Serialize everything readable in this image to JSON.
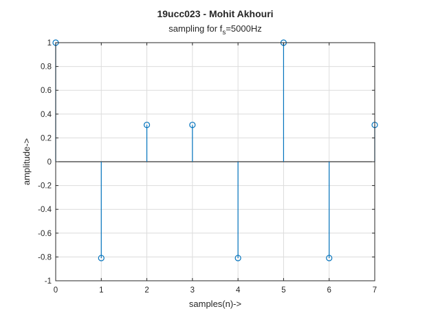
{
  "chart_data": {
    "type": "stem",
    "title": "19ucc023 - Mohit Akhouri",
    "subtitle": {
      "prefix": "sampling for f",
      "subscript": "s",
      "suffix": "=5000Hz"
    },
    "xlabel": "samples(n)->",
    "ylabel": "amplitude->",
    "xlim": [
      0,
      7
    ],
    "ylim": [
      -1,
      1
    ],
    "xticks": [
      "0",
      "1",
      "2",
      "3",
      "4",
      "5",
      "6",
      "7"
    ],
    "yticks": [
      "-1",
      "-0.8",
      "-0.6",
      "-0.4",
      "-0.2",
      "0",
      "0.2",
      "0.4",
      "0.6",
      "0.8",
      "1"
    ],
    "grid": true,
    "series": [
      {
        "x": [
          0,
          1,
          2,
          3,
          4,
          5,
          6,
          7
        ],
        "values": [
          1,
          -0.809,
          0.309,
          0.309,
          -0.809,
          1,
          -0.809,
          0.309
        ]
      }
    ],
    "colors": {
      "stem": "#0072BD",
      "grid": "#dcdcdc",
      "axis": "#262626",
      "baseline": "#000000"
    }
  }
}
